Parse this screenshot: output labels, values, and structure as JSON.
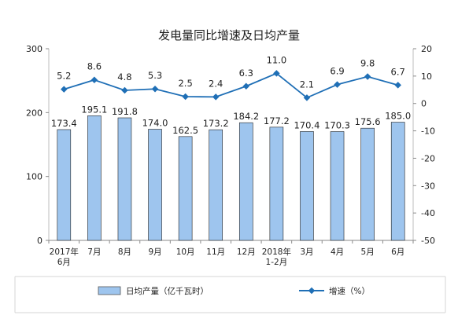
{
  "chart_data": {
    "type": "bar",
    "title": "发电量同比增速及日均产量",
    "categories": [
      "2017年\n6月",
      "7月",
      "8月",
      "9月",
      "10月",
      "11月",
      "12月",
      "2018年\n1-2月",
      "3月",
      "4月",
      "5月",
      "6月"
    ],
    "series": [
      {
        "name": "日均产量（亿千瓦时）",
        "type": "bar",
        "axis": "left",
        "color": "#9ec5ee",
        "values": [
          173.4,
          195.1,
          191.8,
          174.0,
          162.5,
          173.2,
          184.2,
          177.2,
          170.4,
          170.3,
          175.6,
          185.0
        ],
        "labels": [
          "173.4",
          "195.1",
          "191.8",
          "174.0",
          "162.5",
          "173.2",
          "184.2",
          "177.2",
          "170.4",
          "170.3",
          "175.6",
          "185.0"
        ]
      },
      {
        "name": "增速（%）",
        "type": "line",
        "axis": "right",
        "color": "#1f6fb6",
        "marker": "diamond",
        "values": [
          5.2,
          8.6,
          4.8,
          5.3,
          2.5,
          2.4,
          6.3,
          11.0,
          2.1,
          6.9,
          9.8,
          6.7
        ],
        "labels": [
          "5.2",
          "8.6",
          "4.8",
          "5.3",
          "2.5",
          "2.4",
          "6.3",
          "11.0",
          "2.1",
          "6.9",
          "9.8",
          "6.7"
        ]
      }
    ],
    "y_left": {
      "ylim": [
        0,
        300
      ],
      "ticks": [
        0,
        100,
        200,
        300
      ]
    },
    "y_right": {
      "ylim": [
        -50,
        20
      ],
      "ticks": [
        20,
        10,
        0,
        -10,
        -20,
        -30,
        -40,
        -50
      ]
    },
    "grid": false,
    "legend_position": "bottom"
  }
}
